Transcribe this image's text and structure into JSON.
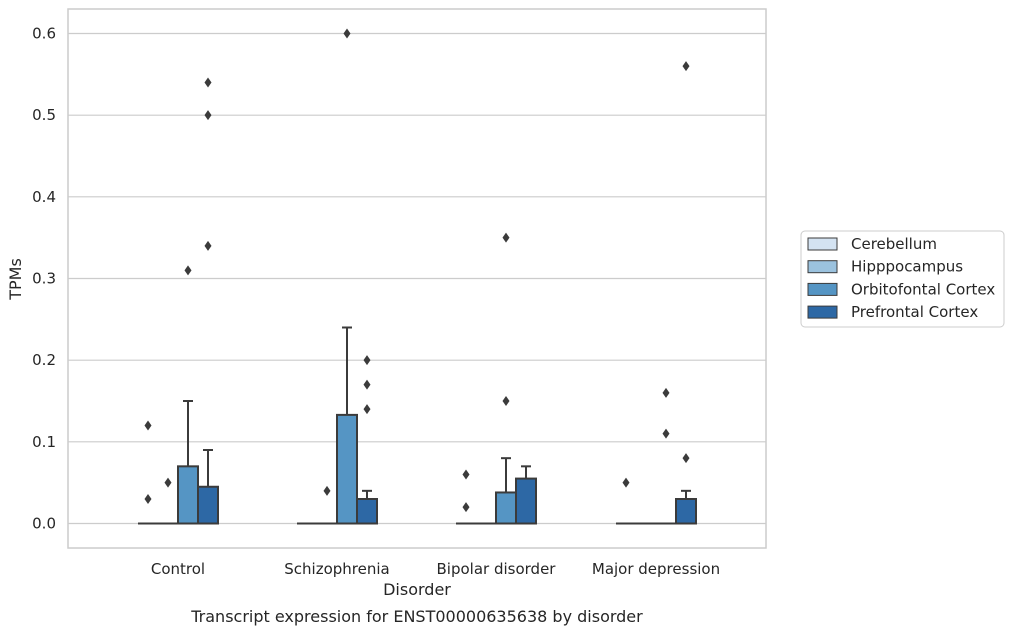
{
  "caption": "Transcript expression for ENST00000635638 by disorder",
  "chart_data": {
    "type": "boxplot",
    "title": "",
    "xlabel": "Disorder",
    "ylabel": "TPMs",
    "categories": [
      "Control",
      "Schizophrenia",
      "Bipolar disorder",
      "Major depression"
    ],
    "ylim": [
      -0.03,
      0.63
    ],
    "yticks": [
      0.0,
      0.1,
      0.2,
      0.3,
      0.4,
      0.5,
      0.6
    ],
    "ytick_labels": [
      "0.0",
      "0.1",
      "0.2",
      "0.3",
      "0.4",
      "0.5",
      "0.6"
    ],
    "grid": "horizontal",
    "legend_position": "right",
    "series": [
      {
        "name": "Cerebellum",
        "color": "#d4e3f2",
        "boxes": [
          {
            "q1": 0,
            "median": 0,
            "q3": 0,
            "whisker_low": 0,
            "whisker_high": 0,
            "outliers": [
              0.12,
              0.03
            ]
          },
          {
            "q1": 0,
            "median": 0,
            "q3": 0,
            "whisker_low": 0,
            "whisker_high": 0,
            "outliers": []
          },
          {
            "q1": 0,
            "median": 0,
            "q3": 0,
            "whisker_low": 0,
            "whisker_high": 0,
            "outliers": [
              0.06,
              0.02
            ]
          },
          {
            "q1": 0,
            "median": 0,
            "q3": 0,
            "whisker_low": 0,
            "whisker_high": 0,
            "outliers": [
              0.05
            ]
          }
        ]
      },
      {
        "name": "Hipppocampus",
        "color": "#9bc2de",
        "boxes": [
          {
            "q1": 0,
            "median": 0,
            "q3": 0,
            "whisker_low": 0,
            "whisker_high": 0,
            "outliers": [
              0.05
            ]
          },
          {
            "q1": 0,
            "median": 0,
            "q3": 0,
            "whisker_low": 0,
            "whisker_high": 0,
            "outliers": [
              0.04
            ]
          },
          {
            "q1": 0,
            "median": 0,
            "q3": 0,
            "whisker_low": 0,
            "whisker_high": 0,
            "outliers": []
          },
          {
            "q1": 0,
            "median": 0,
            "q3": 0,
            "whisker_low": 0,
            "whisker_high": 0,
            "outliers": []
          }
        ]
      },
      {
        "name": "Orbitofontal Cortex",
        "color": "#5595c4",
        "boxes": [
          {
            "q1": 0,
            "median": 0,
            "q3": 0.07,
            "whisker_low": 0,
            "whisker_high": 0.15,
            "outliers": [
              0.31
            ]
          },
          {
            "q1": 0,
            "median": 0,
            "q3": 0.133,
            "whisker_low": 0,
            "whisker_high": 0.24,
            "outliers": [
              0.6
            ]
          },
          {
            "q1": 0,
            "median": 0,
            "q3": 0.038,
            "whisker_low": 0,
            "whisker_high": 0.08,
            "outliers": [
              0.35,
              0.15
            ]
          },
          {
            "q1": 0,
            "median": 0,
            "q3": 0,
            "whisker_low": 0,
            "whisker_high": 0,
            "outliers": [
              0.16,
              0.11
            ]
          }
        ]
      },
      {
        "name": "Prefrontal Cortex",
        "color": "#2d68a5",
        "boxes": [
          {
            "q1": 0,
            "median": 0,
            "q3": 0.045,
            "whisker_low": 0,
            "whisker_high": 0.09,
            "outliers": [
              0.54,
              0.5,
              0.34
            ]
          },
          {
            "q1": 0,
            "median": 0,
            "q3": 0.03,
            "whisker_low": 0,
            "whisker_high": 0.04,
            "outliers": [
              0.2,
              0.17,
              0.14
            ]
          },
          {
            "q1": 0,
            "median": 0,
            "q3": 0.055,
            "whisker_low": 0,
            "whisker_high": 0.07,
            "outliers": []
          },
          {
            "q1": 0,
            "median": 0,
            "q3": 0.03,
            "whisker_low": 0,
            "whisker_high": 0.04,
            "outliers": [
              0.56,
              0.08
            ]
          }
        ]
      }
    ]
  }
}
